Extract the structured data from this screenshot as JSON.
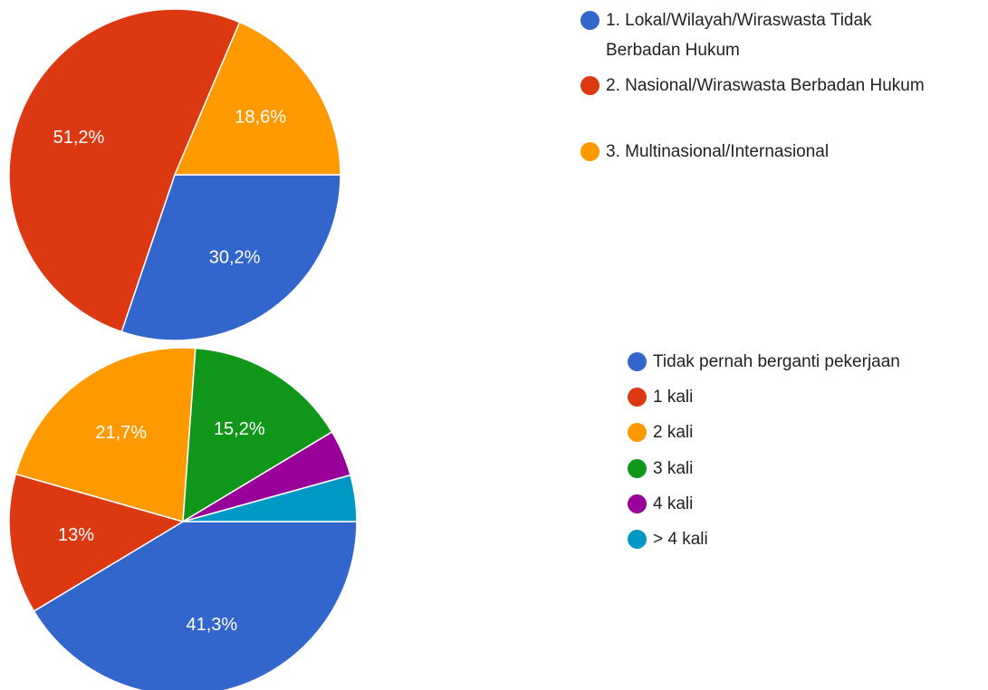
{
  "chart_data": [
    {
      "type": "pie",
      "categories": [
        "1. Lokal/Wilayah/Wiraswasta Tidak Berbadan Hukum",
        "2. Nasional/Wiraswasta Berbadan Hukum",
        "3. Multinasional/Internasional"
      ],
      "values": [
        30.2,
        51.2,
        18.6
      ],
      "value_labels": [
        "30,2%",
        "51,2%",
        "18,6%"
      ],
      "colors": [
        "#3366cc",
        "#dc3912",
        "#ff9900"
      ]
    },
    {
      "type": "pie",
      "categories": [
        "Tidak pernah berganti pekerjaan",
        "1 kali",
        "2 kali",
        "3 kali",
        "4 kali",
        "> 4 kali"
      ],
      "values": [
        41.3,
        13,
        21.7,
        15.2,
        4.3,
        4.3
      ],
      "value_labels": [
        "41,3%",
        "13%",
        "21,7%",
        "15,2%",
        null,
        null
      ],
      "colors": [
        "#3366cc",
        "#dc3912",
        "#ff9900",
        "#109618",
        "#990099",
        "#0099c6"
      ]
    }
  ]
}
